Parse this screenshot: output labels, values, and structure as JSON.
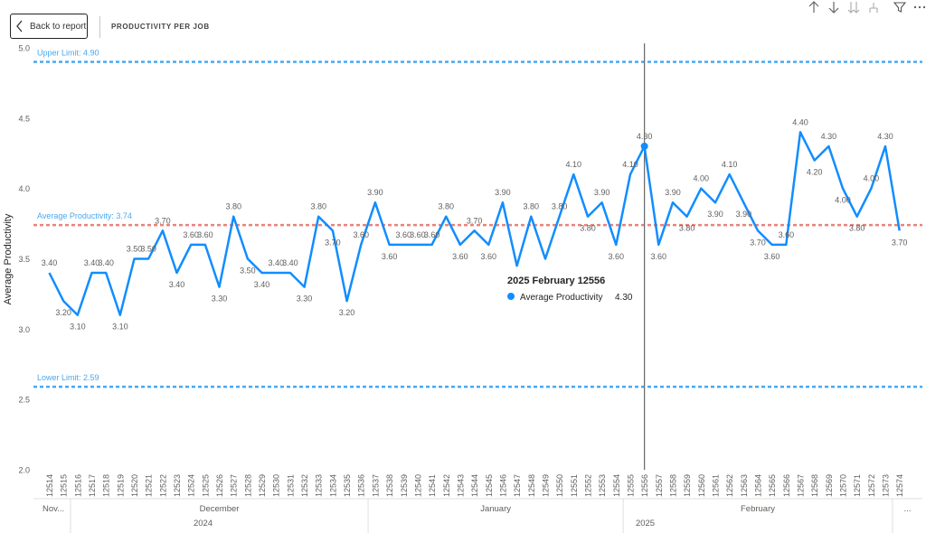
{
  "header": {
    "back_label": "Back to report",
    "page_title": "PRODUCTIVITY PER JOB",
    "toolbar_icons": [
      "arrow-up-icon",
      "arrow-down-icon",
      "double-arrow-down-icon",
      "expand-hierarchy-icon",
      "filter-icon",
      "more-options-icon"
    ]
  },
  "colors": {
    "series": "#118DFF",
    "average_line": "#E8837B",
    "limit_lines": "#4AA8F0",
    "crosshair": "#666666"
  },
  "chart_data": {
    "type": "line",
    "ylabel": "Average Productivity",
    "ylim": [
      2.0,
      5.0
    ],
    "yticks": [
      "2.0",
      "2.5",
      "3.0",
      "3.5",
      "4.0",
      "4.5",
      "5.0"
    ],
    "x": [
      "12514",
      "12515",
      "12516",
      "12517",
      "12518",
      "12519",
      "12520",
      "12521",
      "12522",
      "12523",
      "12524",
      "12525",
      "12526",
      "12527",
      "12528",
      "12529",
      "12530",
      "12531",
      "12532",
      "12533",
      "12534",
      "12535",
      "12536",
      "12537",
      "12538",
      "12539",
      "12540",
      "12541",
      "12542",
      "12543",
      "12544",
      "12545",
      "12546",
      "12547",
      "12548",
      "12549",
      "12550",
      "12551",
      "12552",
      "12553",
      "12554",
      "12555",
      "12556",
      "12557",
      "12558",
      "12559",
      "12560",
      "12561",
      "12562",
      "12563",
      "12564",
      "12565",
      "12566",
      "12567",
      "12568",
      "12569",
      "12570",
      "12571",
      "12572",
      "12573",
      "12574"
    ],
    "series": [
      {
        "name": "Average Productivity",
        "values": [
          3.4,
          3.2,
          3.1,
          3.4,
          3.4,
          3.1,
          3.5,
          3.5,
          3.7,
          3.4,
          3.6,
          3.6,
          3.3,
          3.8,
          3.5,
          3.4,
          3.4,
          3.4,
          3.3,
          3.8,
          3.7,
          3.2,
          3.6,
          3.9,
          3.6,
          3.6,
          3.6,
          3.6,
          3.8,
          3.6,
          3.7,
          3.6,
          3.9,
          3.45,
          3.8,
          3.5,
          3.8,
          4.1,
          3.8,
          3.9,
          3.6,
          4.1,
          4.3,
          3.6,
          3.9,
          3.8,
          4.0,
          3.9,
          4.1,
          3.9,
          3.7,
          3.6,
          3.6,
          4.4,
          4.2,
          4.3,
          4.0,
          3.8,
          4.0,
          4.3,
          3.7
        ],
        "labels": [
          "3.40",
          "3.20",
          "3.10",
          "3.40",
          "3.40",
          "3.10",
          "3.50",
          "3.50",
          "3.70",
          "3.40",
          "3.60",
          "3.60",
          "3.30",
          "3.80",
          "3.50",
          "3.40",
          "3.40",
          "3.40",
          "3.30",
          "3.80",
          "3.70",
          "3.20",
          "3.60",
          "3.90",
          "3.60",
          "3.60",
          "3.60",
          "3.60",
          "3.80",
          "3.60",
          "3.70",
          "3.60",
          "3.90",
          "",
          "3.80",
          "",
          "3.80",
          "4.10",
          "3.80",
          "3.90",
          "3.60",
          "4.10",
          "4.30",
          "3.60",
          "3.90",
          "3.80",
          "4.00",
          "3.90",
          "4.10",
          "3.90",
          "3.70",
          "3.60",
          "3.60",
          "4.40",
          "4.20",
          "4.30",
          "4.00",
          "3.80",
          "4.00",
          "4.30",
          "3.70"
        ]
      }
    ],
    "reference_lines": [
      {
        "label": "Upper Limit: 4.90",
        "value": 4.9
      },
      {
        "label": "Average Productivity: 3.74",
        "value": 3.74
      },
      {
        "label": "Lower Limit: 2.59",
        "value": 2.59
      }
    ],
    "months": [
      {
        "label": "Nov...",
        "from": 0,
        "to": 1
      },
      {
        "label": "December",
        "from": 2,
        "to": 22
      },
      {
        "label": "January",
        "from": 23,
        "to": 40
      },
      {
        "label": "February",
        "from": 41,
        "to": 59
      },
      {
        "label": "...",
        "from": 60,
        "to": 60
      }
    ],
    "years": [
      {
        "label": "2024",
        "from": 0,
        "to": 22
      },
      {
        "label": "2025",
        "from": 23,
        "to": 60
      }
    ],
    "tooltip": {
      "title": "2025 February 12556",
      "series_name": "Average Productivity",
      "value": "4.30",
      "index": 42
    }
  }
}
